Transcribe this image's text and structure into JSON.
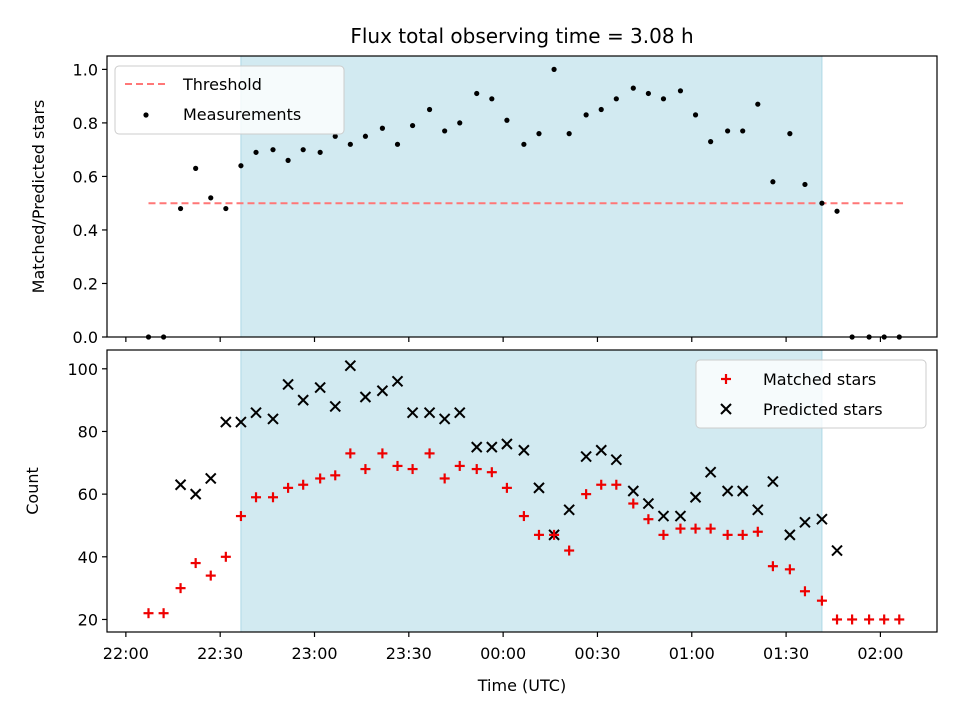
{
  "chart_data": {
    "type": "scatter",
    "title": "Flux total observing time = 3.08 h",
    "xlabel": "Time (UTC)",
    "x_tick_labels": [
      "22:00",
      "22:30",
      "23:00",
      "23:30",
      "00:00",
      "00:30",
      "01:00",
      "01:30",
      "02:00"
    ],
    "x_tick_hours": [
      0,
      0.5,
      1.0,
      1.5,
      2.0,
      2.5,
      3.0,
      3.5,
      4.0
    ],
    "x_axis_start": "22:00 UTC",
    "xlim_hours": [
      -0.1,
      4.3
    ],
    "shaded_span_hours": [
      0.61,
      3.69
    ],
    "shaded_color": "#add8e6",
    "top_panel": {
      "ylabel": "Matched/Predicted stars",
      "ylim": [
        0,
        1.05
      ],
      "yticks": [
        "0.0",
        "0.2",
        "0.4",
        "0.6",
        "0.8",
        "1.0"
      ],
      "ytick_values": [
        0,
        0.2,
        0.4,
        0.6,
        0.8,
        1.0
      ],
      "legend_position": "top-left",
      "threshold": {
        "name": "Threshold",
        "value": 0.5,
        "x_range_hours": [
          0.12,
          4.12
        ],
        "color": "#ff7777"
      },
      "measurements": {
        "name": "Measurements",
        "color": "#000000",
        "x_hours": [
          0.12,
          0.2,
          0.29,
          0.37,
          0.45,
          0.53,
          0.61,
          0.69,
          0.78,
          0.86,
          0.94,
          1.03,
          1.11,
          1.19,
          1.27,
          1.36,
          1.44,
          1.52,
          1.61,
          1.69,
          1.77,
          1.86,
          1.94,
          2.02,
          2.11,
          2.19,
          2.27,
          2.35,
          2.44,
          2.52,
          2.6,
          2.69,
          2.77,
          2.85,
          2.94,
          3.02,
          3.1,
          3.19,
          3.27,
          3.35,
          3.43,
          3.52,
          3.6,
          3.69,
          3.77,
          3.85,
          3.94,
          4.02,
          4.1
        ],
        "values": [
          0.0,
          0.0,
          0.48,
          0.63,
          0.52,
          0.48,
          0.64,
          0.69,
          0.7,
          0.66,
          0.7,
          0.69,
          0.75,
          0.72,
          0.75,
          0.78,
          0.72,
          0.79,
          0.85,
          0.77,
          0.8,
          0.91,
          0.89,
          0.81,
          0.72,
          0.76,
          1.0,
          0.76,
          0.83,
          0.85,
          0.89,
          0.93,
          0.91,
          0.89,
          0.92,
          0.83,
          0.73,
          0.77,
          0.77,
          0.87,
          0.58,
          0.76,
          0.57,
          0.5,
          0.47,
          0.0,
          0.0,
          0.0,
          0.0
        ]
      }
    },
    "bottom_panel": {
      "ylabel": "Count",
      "ylim": [
        16,
        106
      ],
      "yticks": [
        "20",
        "40",
        "60",
        "80",
        "100"
      ],
      "ytick_values": [
        20,
        40,
        60,
        80,
        100
      ],
      "legend_position": "top-right",
      "series": [
        {
          "name": "Matched stars",
          "marker": "plus",
          "color": "#ee0000",
          "x_hours": [
            0.12,
            0.2,
            0.29,
            0.37,
            0.45,
            0.53,
            0.61,
            0.69,
            0.78,
            0.86,
            0.94,
            1.03,
            1.11,
            1.19,
            1.27,
            1.36,
            1.44,
            1.52,
            1.61,
            1.69,
            1.77,
            1.86,
            1.94,
            2.02,
            2.11,
            2.19,
            2.27,
            2.35,
            2.44,
            2.52,
            2.6,
            2.69,
            2.77,
            2.85,
            2.94,
            3.02,
            3.1,
            3.19,
            3.27,
            3.35,
            3.43,
            3.52,
            3.6,
            3.69,
            3.77,
            3.85,
            3.94,
            4.02,
            4.1
          ],
          "values": [
            22,
            22,
            30,
            38,
            34,
            40,
            53,
            59,
            59,
            62,
            63,
            65,
            66,
            73,
            68,
            73,
            69,
            68,
            73,
            65,
            69,
            68,
            67,
            62,
            53,
            47,
            47,
            42,
            60,
            63,
            63,
            57,
            52,
            47,
            49,
            49,
            49,
            47,
            47,
            48,
            37,
            36,
            29,
            26,
            20,
            20,
            20,
            20,
            20
          ]
        },
        {
          "name": "Predicted stars",
          "marker": "x",
          "color": "#000000",
          "x_hours": [
            0.29,
            0.37,
            0.45,
            0.53,
            0.61,
            0.69,
            0.78,
            0.86,
            0.94,
            1.03,
            1.11,
            1.19,
            1.27,
            1.36,
            1.44,
            1.52,
            1.61,
            1.69,
            1.77,
            1.86,
            1.94,
            2.02,
            2.11,
            2.19,
            2.27,
            2.35,
            2.44,
            2.52,
            2.6,
            2.69,
            2.77,
            2.85,
            2.94,
            3.02,
            3.1,
            3.19,
            3.27,
            3.35,
            3.43,
            3.52,
            3.6,
            3.69,
            3.77
          ],
          "values": [
            63,
            60,
            65,
            83,
            83,
            86,
            84,
            95,
            90,
            94,
            88,
            101,
            91,
            93,
            96,
            86,
            86,
            84,
            86,
            75,
            75,
            76,
            74,
            62,
            47,
            55,
            72,
            74,
            71,
            61,
            57,
            53,
            53,
            59,
            67,
            61,
            61,
            55,
            64,
            47,
            51,
            52,
            42
          ]
        }
      ]
    }
  }
}
